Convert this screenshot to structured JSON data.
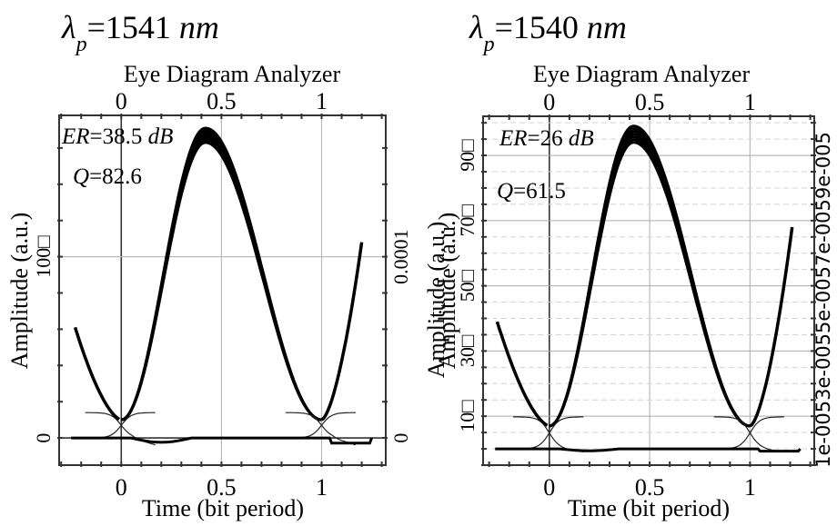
{
  "chart_data": [
    {
      "type": "line",
      "panel_label": "λp=1541 nm",
      "panel_label_parts": {
        "symbol": "λ",
        "subscript": "p",
        "value": "=1541 ",
        "unit": "nm"
      },
      "title": "Eye Diagram Analyzer",
      "xlabel": "Time (bit period)",
      "ylabel": "Amplitude (a.u.)",
      "ylabel_right": "Amplitude (a.u.)",
      "xlim": [
        -0.31,
        1.32
      ],
      "ylim": [
        -15,
        178
      ],
      "x_ticks": [
        "0",
        "0.5",
        "1"
      ],
      "x_tick_values": [
        0,
        0.5,
        1
      ],
      "x_top_ticks": [
        "0",
        "0.5",
        "1"
      ],
      "y_ticks_left": [
        "0",
        "100□"
      ],
      "y_tick_values_left": [
        0,
        100
      ],
      "y_ticks_right": [
        "0",
        "0.0001"
      ],
      "y_tick_values_right": [
        0,
        100
      ],
      "grid": true,
      "annotations": {
        "er": {
          "label": "ER",
          "value": "=38.5 ",
          "unit": "dB"
        },
        "q": {
          "label": "Q",
          "value": "=82.6"
        }
      },
      "series": [
        {
          "name": "eye-one-level",
          "peak_x": 0.42,
          "peak_y": 171,
          "peak_spread": 8,
          "crossing_y": 10
        },
        {
          "name": "eye-left-edge",
          "x": [
            -0.23,
            0.02
          ],
          "y": [
            61,
            10
          ]
        },
        {
          "name": "eye-right-edge",
          "x": [
            0.98,
            1.2
          ],
          "y": [
            10,
            108
          ]
        },
        {
          "name": "zero-level",
          "y": 0,
          "undershoot_y": -4
        }
      ]
    },
    {
      "type": "line",
      "panel_label": "λp=1540 nm",
      "panel_label_parts": {
        "symbol": "λ",
        "subscript": "p",
        "value": "=1540 ",
        "unit": "nm"
      },
      "title": "Eye Diagram Analyzer",
      "xlabel": "Time (bit period)",
      "ylabel": "Amplitude (a.u.)",
      "ylabel_right": "1e-0053e-0055e-0057e-0059e-005",
      "xlim": [
        -0.33,
        1.32
      ],
      "ylim": [
        -5,
        102
      ],
      "x_ticks": [
        "0",
        "0.5",
        "1"
      ],
      "x_tick_values": [
        0,
        0.5,
        1
      ],
      "x_top_ticks": [
        "0",
        "0.5",
        "1"
      ],
      "y_ticks_left": [
        "10□",
        "30□",
        "50□",
        "70□",
        "90□"
      ],
      "y_tick_values_left": [
        10,
        30,
        50,
        70,
        90
      ],
      "grid": true,
      "annotations": {
        "er": {
          "label": "ER",
          "value": "=26 ",
          "unit": "dB"
        },
        "q": {
          "label": "Q",
          "value": "=61.5"
        }
      },
      "series": [
        {
          "name": "eye-one-level",
          "peak_x": 0.42,
          "peak_y": 99,
          "peak_spread": 5,
          "crossing_y": 7
        },
        {
          "name": "eye-left-edge",
          "x": [
            -0.26,
            0.02
          ],
          "y": [
            39,
            7
          ]
        },
        {
          "name": "eye-right-edge",
          "x": [
            0.98,
            1.21
          ],
          "y": [
            7,
            68
          ]
        },
        {
          "name": "zero-level",
          "y": 0,
          "undershoot_y": -1
        }
      ]
    }
  ]
}
